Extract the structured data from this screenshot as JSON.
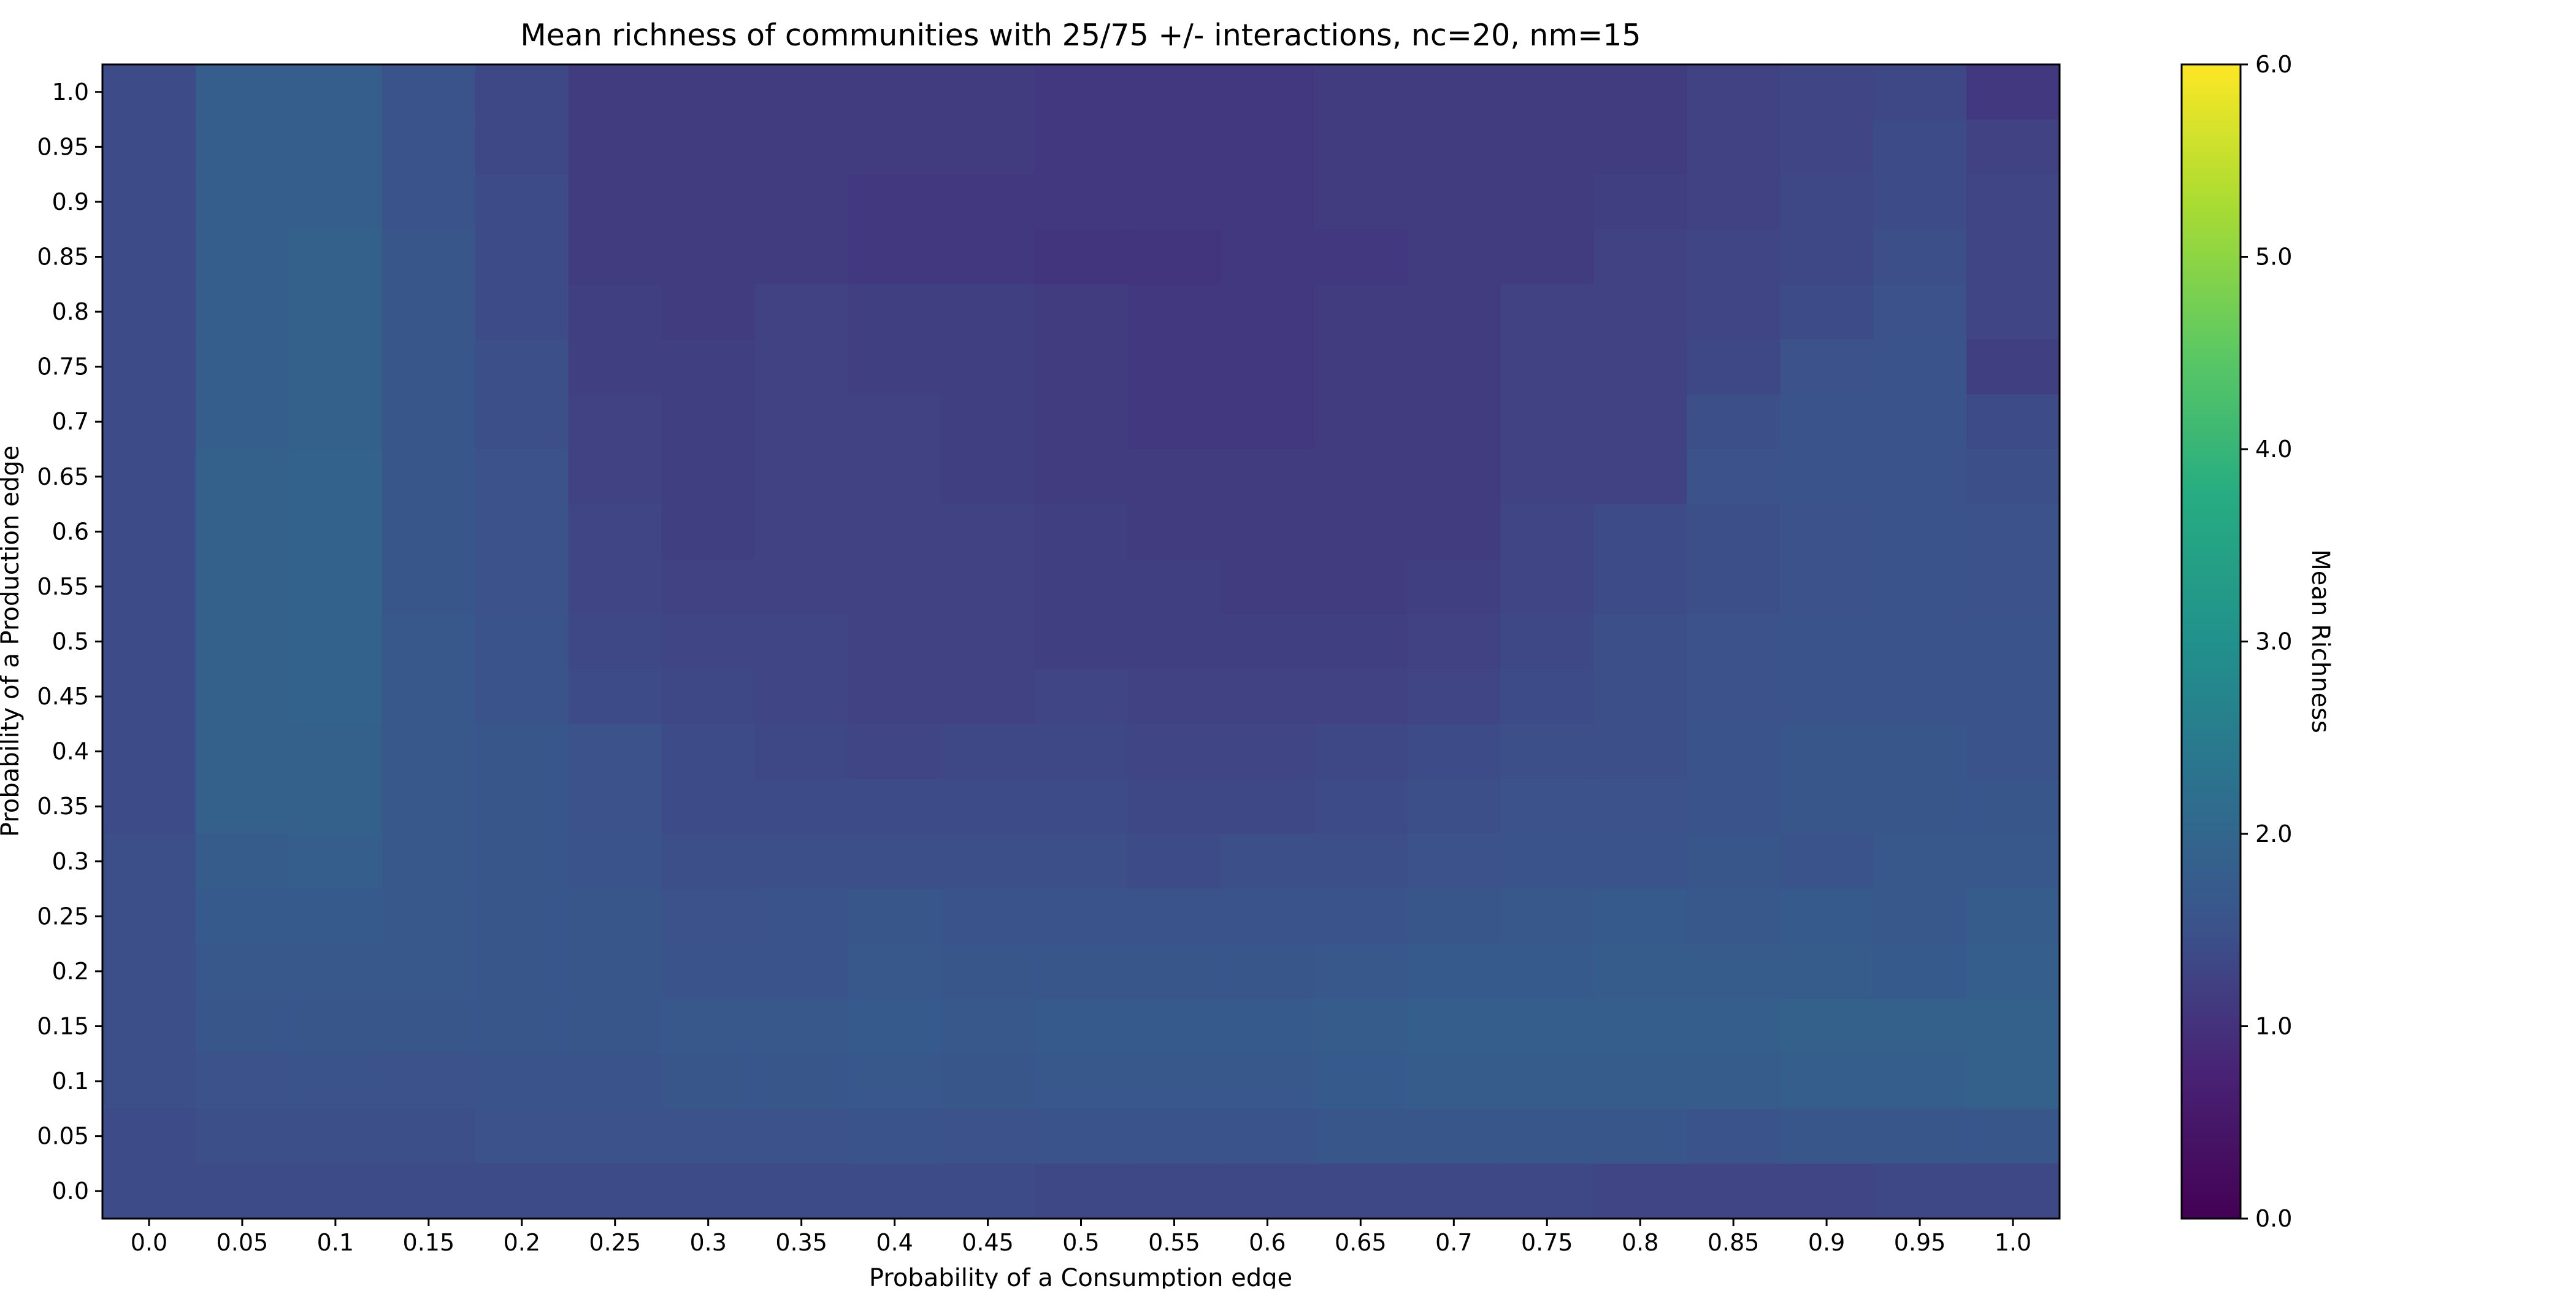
{
  "chart_data": {
    "type": "heatmap",
    "title": "Mean richness of communities with 25/75 +/- interactions, nc=20, nm=15",
    "xlabel": "Probability of a Consumption edge",
    "ylabel": "Probability of a Production edge",
    "colorbar_label": "Mean Richness",
    "colormap": "viridis",
    "vmin": 0.0,
    "vmax": 6.0,
    "colorbar_ticks": [
      "0.0",
      "1.0",
      "2.0",
      "3.0",
      "4.0",
      "5.0",
      "6.0"
    ],
    "x": [
      "0.0",
      "0.05",
      "0.1",
      "0.15",
      "0.2",
      "0.25",
      "0.3",
      "0.35",
      "0.4",
      "0.45",
      "0.5",
      "0.55",
      "0.6",
      "0.65",
      "0.7",
      "0.75",
      "0.8",
      "0.85",
      "0.9",
      "0.95",
      "1.0"
    ],
    "y": [
      "1.0",
      "0.95",
      "0.9",
      "0.85",
      "0.8",
      "0.75",
      "0.7",
      "0.65",
      "0.6",
      "0.55",
      "0.5",
      "0.45",
      "0.4",
      "0.35",
      "0.3",
      "0.25",
      "0.2",
      "0.15",
      "0.1",
      "0.05",
      "0.0"
    ],
    "values": [
      [
        1.4,
        1.8,
        1.8,
        1.55,
        1.35,
        1.15,
        1.15,
        1.15,
        1.15,
        1.15,
        1.1,
        1.1,
        1.1,
        1.15,
        1.15,
        1.15,
        1.15,
        1.25,
        1.3,
        1.35,
        1.1
      ],
      [
        1.4,
        1.8,
        1.8,
        1.55,
        1.35,
        1.15,
        1.15,
        1.15,
        1.15,
        1.15,
        1.1,
        1.1,
        1.1,
        1.15,
        1.15,
        1.15,
        1.15,
        1.25,
        1.3,
        1.4,
        1.25
      ],
      [
        1.4,
        1.8,
        1.8,
        1.55,
        1.4,
        1.15,
        1.15,
        1.15,
        1.1,
        1.1,
        1.1,
        1.1,
        1.1,
        1.15,
        1.15,
        1.15,
        1.2,
        1.25,
        1.35,
        1.4,
        1.3
      ],
      [
        1.4,
        1.8,
        1.85,
        1.6,
        1.4,
        1.15,
        1.15,
        1.15,
        1.1,
        1.1,
        1.05,
        1.05,
        1.1,
        1.1,
        1.15,
        1.15,
        1.25,
        1.3,
        1.35,
        1.45,
        1.3
      ],
      [
        1.4,
        1.8,
        1.85,
        1.6,
        1.4,
        1.2,
        1.15,
        1.25,
        1.2,
        1.2,
        1.15,
        1.1,
        1.1,
        1.15,
        1.15,
        1.25,
        1.25,
        1.3,
        1.4,
        1.5,
        1.3
      ],
      [
        1.4,
        1.8,
        1.85,
        1.6,
        1.45,
        1.2,
        1.2,
        1.25,
        1.2,
        1.2,
        1.15,
        1.1,
        1.1,
        1.15,
        1.15,
        1.25,
        1.25,
        1.35,
        1.5,
        1.55,
        1.2
      ],
      [
        1.4,
        1.8,
        1.85,
        1.6,
        1.45,
        1.25,
        1.2,
        1.25,
        1.25,
        1.2,
        1.15,
        1.1,
        1.1,
        1.15,
        1.15,
        1.25,
        1.25,
        1.45,
        1.55,
        1.55,
        1.4
      ],
      [
        1.4,
        1.85,
        1.9,
        1.6,
        1.5,
        1.25,
        1.2,
        1.25,
        1.25,
        1.2,
        1.15,
        1.15,
        1.15,
        1.15,
        1.15,
        1.25,
        1.25,
        1.5,
        1.55,
        1.55,
        1.45
      ],
      [
        1.4,
        1.85,
        1.9,
        1.6,
        1.5,
        1.3,
        1.2,
        1.25,
        1.25,
        1.25,
        1.2,
        1.15,
        1.15,
        1.15,
        1.15,
        1.3,
        1.4,
        1.45,
        1.5,
        1.55,
        1.5
      ],
      [
        1.4,
        1.85,
        1.9,
        1.6,
        1.5,
        1.3,
        1.25,
        1.25,
        1.25,
        1.25,
        1.2,
        1.2,
        1.15,
        1.15,
        1.2,
        1.3,
        1.4,
        1.45,
        1.5,
        1.55,
        1.5
      ],
      [
        1.4,
        1.85,
        1.9,
        1.65,
        1.55,
        1.35,
        1.3,
        1.3,
        1.25,
        1.25,
        1.2,
        1.2,
        1.2,
        1.2,
        1.25,
        1.35,
        1.45,
        1.5,
        1.55,
        1.55,
        1.55
      ],
      [
        1.4,
        1.85,
        1.9,
        1.65,
        1.55,
        1.4,
        1.35,
        1.3,
        1.25,
        1.25,
        1.3,
        1.25,
        1.25,
        1.25,
        1.3,
        1.4,
        1.45,
        1.5,
        1.55,
        1.55,
        1.55
      ],
      [
        1.4,
        1.85,
        1.85,
        1.65,
        1.6,
        1.5,
        1.4,
        1.35,
        1.3,
        1.35,
        1.35,
        1.3,
        1.3,
        1.35,
        1.4,
        1.45,
        1.45,
        1.55,
        1.6,
        1.6,
        1.55
      ],
      [
        1.4,
        1.85,
        1.85,
        1.65,
        1.6,
        1.5,
        1.4,
        1.4,
        1.4,
        1.4,
        1.4,
        1.35,
        1.35,
        1.4,
        1.45,
        1.5,
        1.5,
        1.55,
        1.6,
        1.6,
        1.6
      ],
      [
        1.45,
        1.75,
        1.8,
        1.65,
        1.6,
        1.55,
        1.45,
        1.45,
        1.45,
        1.45,
        1.45,
        1.4,
        1.45,
        1.45,
        1.5,
        1.55,
        1.55,
        1.6,
        1.55,
        1.65,
        1.65
      ],
      [
        1.45,
        1.7,
        1.7,
        1.65,
        1.6,
        1.6,
        1.5,
        1.55,
        1.6,
        1.55,
        1.55,
        1.55,
        1.55,
        1.55,
        1.6,
        1.65,
        1.7,
        1.65,
        1.7,
        1.65,
        1.75
      ],
      [
        1.45,
        1.65,
        1.65,
        1.65,
        1.6,
        1.6,
        1.55,
        1.55,
        1.65,
        1.6,
        1.6,
        1.6,
        1.6,
        1.65,
        1.7,
        1.7,
        1.75,
        1.75,
        1.75,
        1.7,
        1.8
      ],
      [
        1.45,
        1.6,
        1.6,
        1.6,
        1.6,
        1.6,
        1.65,
        1.65,
        1.7,
        1.65,
        1.7,
        1.7,
        1.7,
        1.75,
        1.8,
        1.8,
        1.8,
        1.8,
        1.85,
        1.85,
        1.85
      ],
      [
        1.45,
        1.5,
        1.55,
        1.5,
        1.55,
        1.55,
        1.6,
        1.6,
        1.65,
        1.6,
        1.65,
        1.65,
        1.65,
        1.7,
        1.75,
        1.75,
        1.75,
        1.75,
        1.8,
        1.8,
        1.85
      ],
      [
        1.4,
        1.45,
        1.45,
        1.45,
        1.5,
        1.5,
        1.5,
        1.5,
        1.55,
        1.5,
        1.55,
        1.55,
        1.55,
        1.6,
        1.6,
        1.6,
        1.6,
        1.55,
        1.6,
        1.6,
        1.6
      ],
      [
        1.4,
        1.4,
        1.4,
        1.4,
        1.4,
        1.4,
        1.4,
        1.4,
        1.4,
        1.4,
        1.35,
        1.35,
        1.35,
        1.35,
        1.35,
        1.35,
        1.3,
        1.3,
        1.3,
        1.35,
        1.35
      ]
    ],
    "grid": false
  }
}
